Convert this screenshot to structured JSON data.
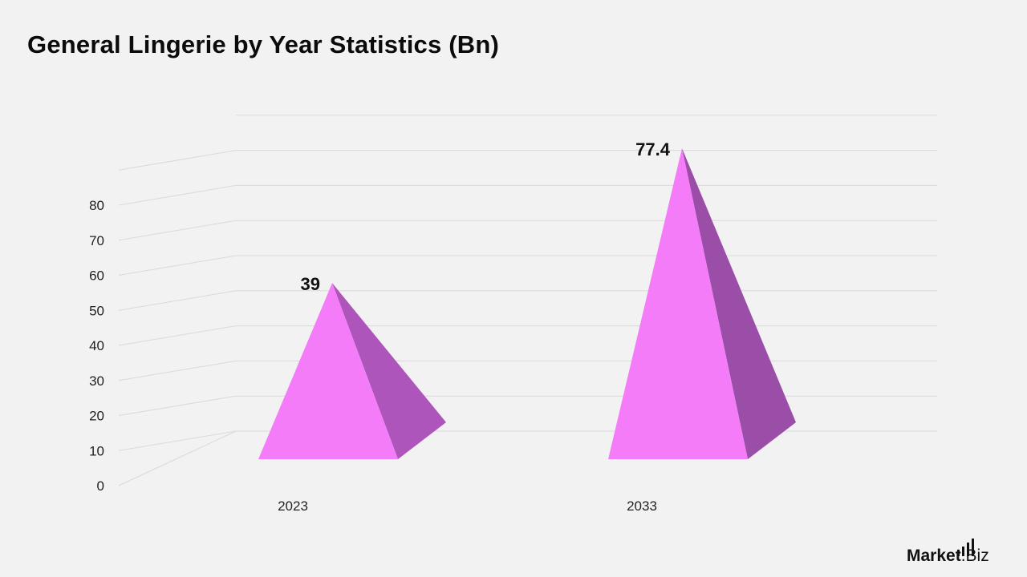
{
  "chart_data": {
    "type": "bar",
    "style": "3d-pyramid",
    "title": "General Lingerie by Year Statistics (Bn)",
    "xlabel": "",
    "ylabel": "",
    "categories": [
      "2023",
      "2033"
    ],
    "values": [
      39,
      77.4
    ],
    "data_labels": [
      "39",
      "77.4"
    ],
    "y_ticks": [
      "0",
      "10",
      "20",
      "30",
      "40",
      "50",
      "60",
      "70",
      "80"
    ],
    "ylim": [
      0,
      80
    ],
    "grid": true,
    "legend": "none",
    "colors": {
      "front_face": "#f57cf9",
      "side_face_2023": "#ae55bb",
      "side_face_2033": "#9b4ea8",
      "gridline": "#d9d9d9",
      "background": "#f2f2f2"
    }
  },
  "brand": {
    "name_main": "Market",
    "name_suffix": ".Biz"
  }
}
